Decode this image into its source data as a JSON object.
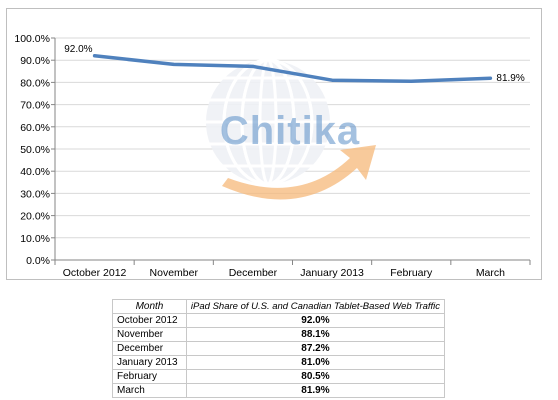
{
  "chart_data": {
    "type": "line",
    "categories": [
      "October 2012",
      "November",
      "December",
      "January 2013",
      "February",
      "March"
    ],
    "series": [
      {
        "values": [
          92.0,
          88.1,
          87.2,
          81.0,
          80.5,
          81.9
        ],
        "color": "#4f81bd"
      }
    ],
    "yticks": [
      "0.0%",
      "10.0%",
      "20.0%",
      "30.0%",
      "40.0%",
      "50.0%",
      "60.0%",
      "70.0%",
      "80.0%",
      "90.0%",
      "100.0%"
    ],
    "ylim": [
      0,
      100
    ],
    "grid": true,
    "legend": "none",
    "data_labels": [
      {
        "index": 0,
        "text": "92.0%"
      },
      {
        "index": 5,
        "text": "81.9%"
      }
    ],
    "watermark": "Chitika"
  },
  "table": {
    "headers": [
      "Month",
      "iPad Share of U.S. and Canadian Tablet-Based Web Traffic"
    ],
    "rows": [
      [
        "October 2012",
        "92.0%"
      ],
      [
        "November",
        "88.1%"
      ],
      [
        "December",
        "87.2%"
      ],
      [
        "January 2013",
        "81.0%"
      ],
      [
        "February",
        "80.5%"
      ],
      [
        "March",
        "81.9%"
      ]
    ]
  },
  "colors": {
    "line": "#4f81bd",
    "grid": "#d9d9d9",
    "axis": "#868686",
    "watermark_blue": "#5b8fc7",
    "watermark_orange": "#f5b87a"
  }
}
